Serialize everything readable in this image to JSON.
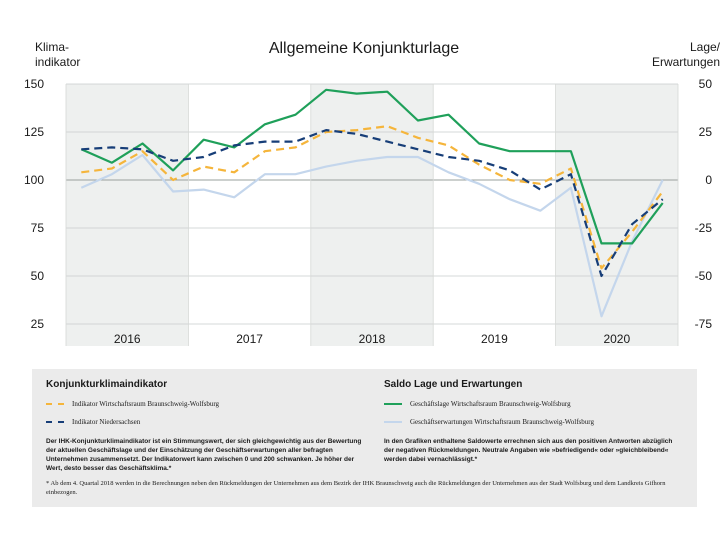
{
  "chart_data": {
    "type": "line",
    "title": "Allgemeine Konjunkturlage",
    "ylabel_left": [
      "Klima-",
      "indikator"
    ],
    "ylabel_right": [
      "Lage/",
      "Erwartungen"
    ],
    "ylim_left": [
      25,
      150
    ],
    "ylim_right": [
      -75,
      50
    ],
    "yticks_left": [
      "150",
      "125",
      "100",
      "75",
      "50",
      "25"
    ],
    "yticks_right": [
      "50",
      "25",
      "0",
      "-25",
      "-50",
      "-75"
    ],
    "x_groups": [
      "2016",
      "2017",
      "2018",
      "2019",
      "2020"
    ],
    "x": [
      "2016 Q1",
      "2016 Q2",
      "2016 Q3",
      "2016 Q4",
      "2017 Q1",
      "2017 Q2",
      "2017 Q3",
      "2017 Q4",
      "2018 Q1",
      "2018 Q2",
      "2018 Q3",
      "2018 Q4",
      "2019 Q1",
      "2019 Q2",
      "2019 Q3",
      "2019 Q4",
      "2020 Q1",
      "2020 Q2",
      "2020 Q3",
      "2020 Q4"
    ],
    "series": [
      {
        "name": "Indikator Wirtschaftsraum Braunschweig-Wolfsburg",
        "axis": "left",
        "color": "#f5b53b",
        "dash": true,
        "values": [
          104,
          106,
          115,
          100,
          107,
          104,
          115,
          117,
          125,
          126,
          128,
          122,
          118,
          108,
          100,
          98,
          106,
          54,
          73,
          94
        ]
      },
      {
        "name": "Indikator Niedersachsen",
        "axis": "left",
        "color": "#173e78",
        "dash": true,
        "values": [
          116,
          117,
          116,
          110,
          112,
          118,
          120,
          120,
          126,
          124,
          120,
          116,
          112,
          110,
          105,
          95,
          103,
          50,
          77,
          90
        ]
      },
      {
        "name": "Geschäftslage Wirtschaftsraum Braunschweig-Wolfsburg",
        "axis": "right",
        "color": "#1fa05a",
        "dash": false,
        "values": [
          16,
          9,
          19,
          5,
          21,
          17,
          29,
          34,
          47,
          45,
          46,
          31,
          34,
          19,
          15,
          15,
          15,
          -33,
          -33,
          -12
        ]
      },
      {
        "name": "Geschäftserwartungen Wirtschaftsraum Braunschweig-Wolfsburg",
        "axis": "right",
        "color": "#c4d6ec",
        "dash": false,
        "values": [
          -4,
          3,
          13,
          -6,
          -5,
          -9,
          3,
          3,
          7,
          10,
          12,
          12,
          4,
          -2,
          -10,
          -16,
          -4,
          -71,
          -32,
          0
        ]
      }
    ]
  },
  "legend": {
    "left_heading": "Konjunkturklimaindikator",
    "left_items": [
      "Indikator Wirtschaftsraum Braunschweig-Wolfsburg",
      "Indikator Niedersachsen"
    ],
    "left_note": "Der IHK-Konjunkturklimaindikator ist ein Stimmungswert, der sich gleichgewichtig aus der Bewertung der aktuellen Geschäftslage und der Einschätzung der Geschäftserwartungen aller befragten Unternehmen zusammensetzt. Der Indikatorwert kann zwischen 0 und 200 schwanken. Je höher der Wert, desto besser das Geschäftsklima.*",
    "right_heading": "Saldo Lage und Erwartungen",
    "right_items": [
      "Geschäftslage Wirtschaftsraum Braunschweig-Wolfsburg",
      "Geschäftserwartungen Wirtschaftsraum Braunschweig-Wolfsburg"
    ],
    "right_note": "In den Grafiken enthaltene Saldowerte errechnen sich aus den positiven Antworten abzüglich der negativen Rückmeldungen. Neutrale Angaben wie »befriedigend« oder »gleichbleibend« werden dabei vernachlässigt.*",
    "footnote": "* Ab dem 4. Quartal 2018 werden in die Berechnungen neben den Rückmeldungen der Unternehmen aus dem Bezirk der IHK Braunschweig auch die Rückmeldungen der Unternehmen aus der Stadt Wolfsburg und dem Landkreis Gifhorn einbezogen."
  }
}
